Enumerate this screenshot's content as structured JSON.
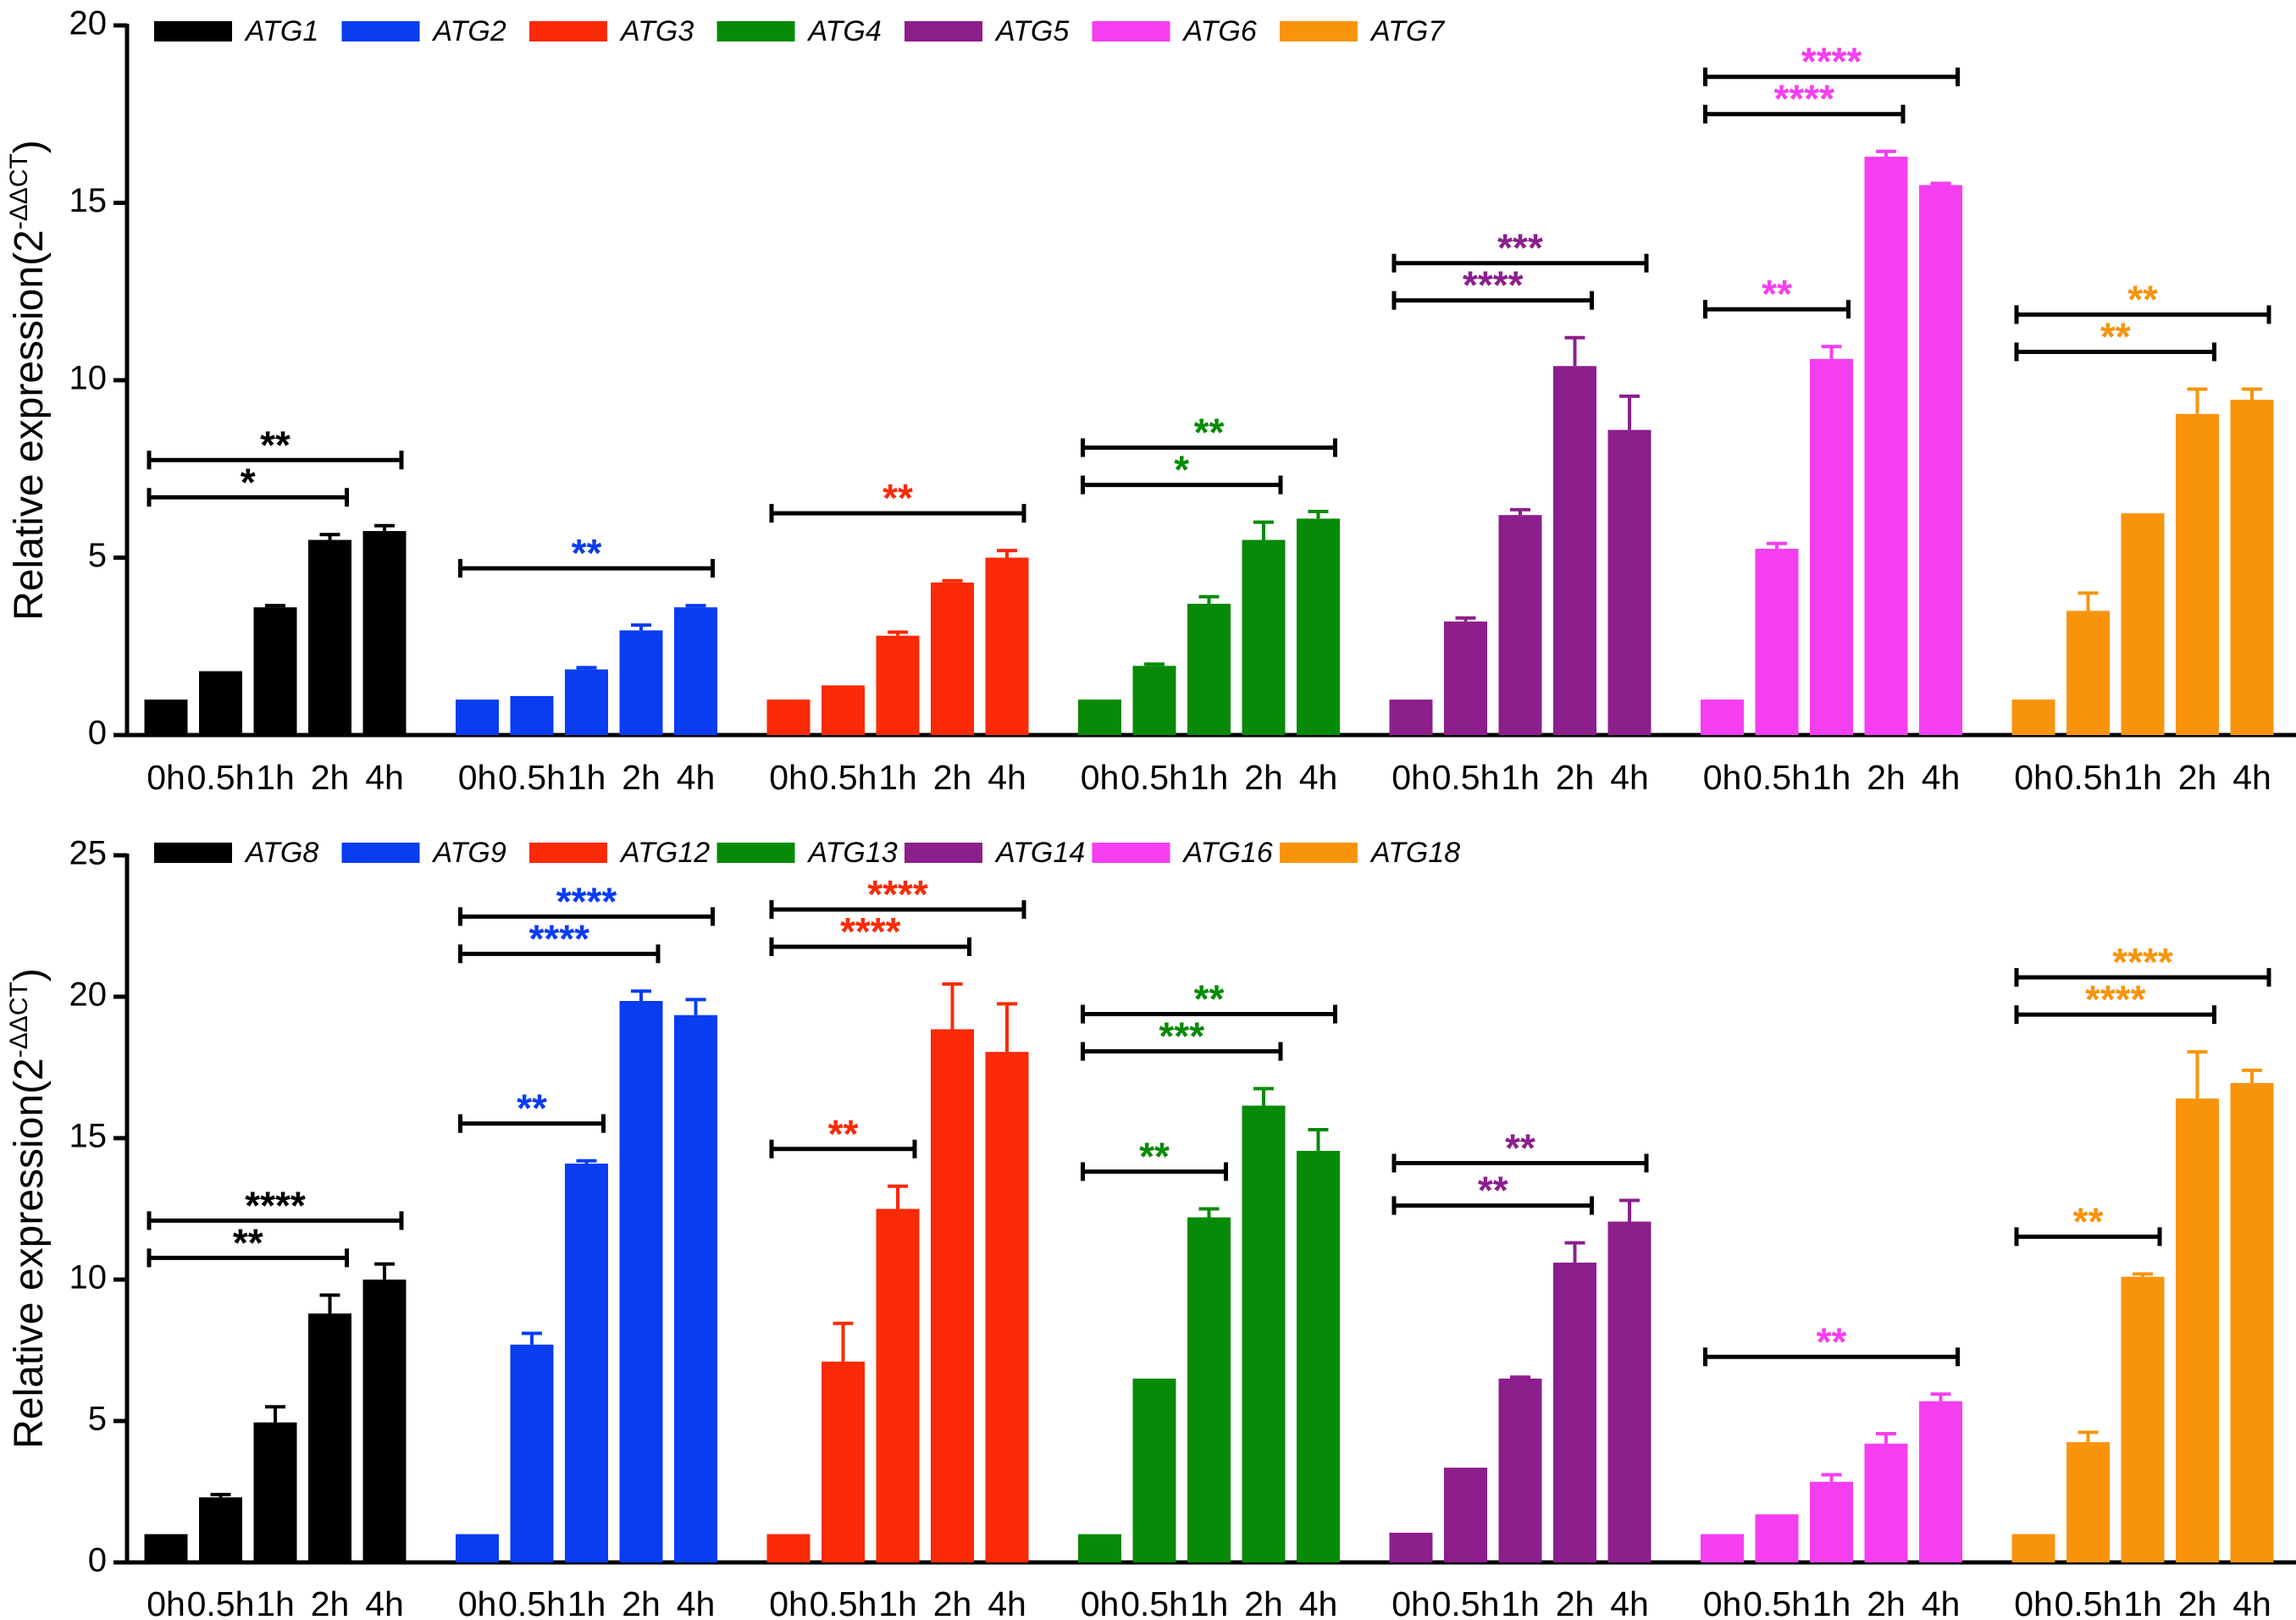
{
  "chart_data": [
    {
      "type": "bar",
      "ylabel": "Relative expression(2",
      "ylabel_sup": "-ΔΔCT",
      "ylabel_close": ")",
      "ylim": [
        0,
        20
      ],
      "yticks": [
        0,
        5,
        10,
        15,
        20
      ],
      "categories": [
        "0h",
        "0.5h",
        "1h",
        "2h",
        "4h"
      ],
      "legend_position": "top-left",
      "grid": false,
      "series": [
        {
          "name": "ATG1",
          "color": "#000000",
          "values": [
            1.0,
            1.8,
            3.6,
            5.5,
            5.75
          ],
          "errors": [
            0,
            0,
            0.05,
            0.15,
            0.15
          ],
          "significance": [
            {
              "from": "0h",
              "to": "2h",
              "label": "*"
            },
            {
              "from": "0h",
              "to": "4h",
              "label": "**"
            }
          ]
        },
        {
          "name": "ATG2",
          "color": "#0a3cf0",
          "values": [
            1.0,
            1.1,
            1.85,
            2.95,
            3.6
          ],
          "errors": [
            0,
            0,
            0.05,
            0.15,
            0.05
          ],
          "significance": [
            {
              "from": "0h",
              "to": "4h",
              "label": "**"
            }
          ]
        },
        {
          "name": "ATG3",
          "color": "#fa2a06",
          "values": [
            1.0,
            1.4,
            2.8,
            4.3,
            5.0
          ],
          "errors": [
            0,
            0,
            0.1,
            0.05,
            0.2
          ],
          "significance": [
            {
              "from": "0h",
              "to": "4h",
              "label": "**"
            }
          ]
        },
        {
          "name": "ATG4",
          "color": "#078a07",
          "values": [
            1.0,
            1.95,
            3.7,
            5.5,
            6.1
          ],
          "errors": [
            0,
            0.05,
            0.2,
            0.5,
            0.2
          ],
          "significance": [
            {
              "from": "0h",
              "to": "2h",
              "label": "*"
            },
            {
              "from": "0h",
              "to": "4h",
              "label": "**"
            }
          ]
        },
        {
          "name": "ATG5",
          "color": "#8c1f8c",
          "values": [
            1.0,
            3.2,
            6.2,
            10.4,
            8.6
          ],
          "errors": [
            0,
            0.1,
            0.15,
            0.8,
            0.95
          ],
          "significance": [
            {
              "from": "0h",
              "to": "2h",
              "label": "****"
            },
            {
              "from": "0h",
              "to": "4h",
              "label": "***"
            }
          ]
        },
        {
          "name": "ATG6",
          "color": "#f53ef0",
          "values": [
            1.0,
            5.25,
            10.6,
            16.3,
            15.5
          ],
          "errors": [
            0,
            0.15,
            0.35,
            0.15,
            0.05
          ],
          "significance": [
            {
              "from": "0h",
              "to": "1h",
              "label": "**"
            },
            {
              "from": "0h",
              "to": "2h",
              "label": "****"
            },
            {
              "from": "0h",
              "to": "4h",
              "label": "****"
            }
          ]
        },
        {
          "name": "ATG7",
          "color": "#f7940c",
          "values": [
            1.0,
            3.5,
            6.25,
            9.05,
            9.45
          ],
          "errors": [
            0,
            0.5,
            0,
            0.7,
            0.3
          ],
          "significance": [
            {
              "from": "0h",
              "to": "2h",
              "label": "**"
            },
            {
              "from": "0h",
              "to": "4h",
              "label": "**"
            }
          ]
        }
      ]
    },
    {
      "type": "bar",
      "ylabel": "Relative expression(2",
      "ylabel_sup": "-ΔΔCT",
      "ylabel_close": ")",
      "ylim": [
        0,
        25
      ],
      "yticks": [
        0,
        5,
        10,
        15,
        20,
        25
      ],
      "categories": [
        "0h",
        "0.5h",
        "1h",
        "2h",
        "4h"
      ],
      "legend_position": "top-left",
      "grid": false,
      "series": [
        {
          "name": "ATG8",
          "color": "#000000",
          "values": [
            1.0,
            2.3,
            4.95,
            8.8,
            10.0
          ],
          "errors": [
            0,
            0.1,
            0.55,
            0.65,
            0.55
          ],
          "significance": [
            {
              "from": "0h",
              "to": "2h",
              "label": "**"
            },
            {
              "from": "0h",
              "to": "4h",
              "label": "****"
            }
          ]
        },
        {
          "name": "ATG9",
          "color": "#0a3cf0",
          "values": [
            1.0,
            7.7,
            14.1,
            19.85,
            19.35
          ],
          "errors": [
            0,
            0.4,
            0.1,
            0.35,
            0.55
          ],
          "significance": [
            {
              "from": "0h",
              "to": "1h",
              "label": "**"
            },
            {
              "from": "0h",
              "to": "2h",
              "label": "****"
            },
            {
              "from": "0h",
              "to": "4h",
              "label": "****"
            }
          ]
        },
        {
          "name": "ATG12",
          "color": "#fa2a06",
          "values": [
            1.0,
            7.1,
            12.5,
            18.85,
            18.05
          ],
          "errors": [
            0,
            1.35,
            0.8,
            1.6,
            1.7
          ],
          "significance": [
            {
              "from": "0h",
              "to": "1h",
              "label": "**"
            },
            {
              "from": "0h",
              "to": "2h",
              "label": "****"
            },
            {
              "from": "0h",
              "to": "4h",
              "label": "****"
            }
          ]
        },
        {
          "name": "ATG13",
          "color": "#078a07",
          "values": [
            1.0,
            6.5,
            12.2,
            16.15,
            14.55
          ],
          "errors": [
            0,
            0,
            0.3,
            0.6,
            0.75
          ],
          "significance": [
            {
              "from": "0h",
              "to": "1h",
              "label": "**"
            },
            {
              "from": "0h",
              "to": "2h",
              "label": "***"
            },
            {
              "from": "0h",
              "to": "4h",
              "label": "**"
            }
          ]
        },
        {
          "name": "ATG14",
          "color": "#8c1f8c",
          "values": [
            1.05,
            3.35,
            6.5,
            10.6,
            12.05
          ],
          "errors": [
            0,
            0,
            0.05,
            0.7,
            0.75
          ],
          "significance": [
            {
              "from": "0h",
              "to": "2h",
              "label": "**"
            },
            {
              "from": "0h",
              "to": "4h",
              "label": "**"
            }
          ]
        },
        {
          "name": "ATG16",
          "color": "#f53ef0",
          "values": [
            1.0,
            1.7,
            2.85,
            4.2,
            5.7
          ],
          "errors": [
            0,
            0,
            0.25,
            0.35,
            0.25
          ],
          "significance": [
            {
              "from": "0h",
              "to": "4h",
              "label": "**"
            }
          ]
        },
        {
          "name": "ATG18",
          "color": "#f7940c",
          "values": [
            1.0,
            4.25,
            10.1,
            16.4,
            16.95
          ],
          "errors": [
            0,
            0.35,
            0.1,
            1.65,
            0.45
          ],
          "significance": [
            {
              "from": "0h",
              "to": "1h",
              "label": "**"
            },
            {
              "from": "0h",
              "to": "2h",
              "label": "****"
            },
            {
              "from": "0h",
              "to": "4h",
              "label": "****"
            }
          ]
        }
      ]
    }
  ]
}
